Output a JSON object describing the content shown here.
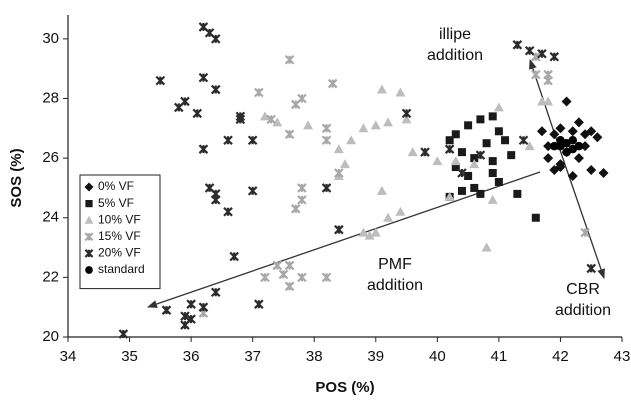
{
  "chart_data": {
    "type": "scatter",
    "x_label": "POS (%)",
    "y_label": "SOS (%)",
    "xlim": [
      34,
      43
    ],
    "ylim": [
      20,
      30.8
    ],
    "xticks": [
      34,
      35,
      36,
      37,
      38,
      39,
      40,
      41,
      42,
      43
    ],
    "yticks": [
      20,
      22,
      24,
      26,
      28,
      30
    ],
    "grid": false,
    "legend": "left",
    "annotations": [
      [
        "illipe",
        "addition"
      ],
      [
        "PMF",
        "addition"
      ],
      [
        "CBR",
        "addition"
      ]
    ],
    "series": [
      {
        "name": "0% VF",
        "color": "#111111",
        "marker": "diamond",
        "x": [
          41.7,
          41.9,
          42.0,
          42.2,
          42.4,
          42.5,
          42.1,
          41.8,
          42.3,
          41.9,
          42.2,
          42.5,
          42.7,
          42.0,
          42.4,
          42.6,
          42.3,
          42.1,
          41.8,
          42.0
        ],
        "values": [
          26.9,
          26.8,
          27.0,
          26.9,
          26.8,
          26.9,
          26.2,
          26.0,
          26.0,
          25.6,
          25.4,
          25.6,
          25.5,
          25.8,
          26.4,
          26.7,
          27.2,
          27.9,
          26.4,
          25.7
        ]
      },
      {
        "name": "5% VF",
        "color": "#1a1a1a",
        "marker": "square",
        "x": [
          40.2,
          40.3,
          40.5,
          40.7,
          40.9,
          40.4,
          40.6,
          40.3,
          40.5,
          40.8,
          40.9,
          41.0,
          41.2,
          41.1,
          40.4,
          40.7,
          40.2,
          41.3,
          40.6,
          41.6,
          40.9,
          41.0
        ],
        "values": [
          26.6,
          26.8,
          27.1,
          27.3,
          27.4,
          26.2,
          26.0,
          25.7,
          25.4,
          26.5,
          25.9,
          25.2,
          26.1,
          26.6,
          24.9,
          24.8,
          24.7,
          24.8,
          25.0,
          24.0,
          25.5,
          26.9
        ]
      },
      {
        "name": "10% VF",
        "color": "#bdbdbd",
        "marker": "triangle",
        "x": [
          37.2,
          37.4,
          37.9,
          38.4,
          38.5,
          38.6,
          38.8,
          39.0,
          39.1,
          39.2,
          39.4,
          39.5,
          39.6,
          39.8,
          40.0,
          40.3,
          40.6,
          39.1,
          39.2,
          38.8,
          39.0,
          39.4,
          40.2,
          41.0,
          40.9,
          41.5,
          40.8,
          41.7,
          41.8,
          38.9,
          38.4
        ],
        "values": [
          27.4,
          27.2,
          27.1,
          26.3,
          25.8,
          26.6,
          27.0,
          27.1,
          28.3,
          27.2,
          28.2,
          27.3,
          26.2,
          26.2,
          25.9,
          25.9,
          25.8,
          24.9,
          24.0,
          23.5,
          23.5,
          24.2,
          24.7,
          27.7,
          24.6,
          26.4,
          23.0,
          27.9,
          27.9,
          23.4,
          25.4
        ]
      },
      {
        "name": "15% VF",
        "color": "#a8a8a8",
        "marker": "x",
        "x": [
          37.1,
          37.6,
          37.8,
          37.7,
          38.3,
          38.2,
          38.2,
          37.3,
          37.6,
          38.4,
          37.8,
          37.8,
          37.7,
          37.4,
          37.2,
          37.5,
          37.6,
          37.8,
          38.2,
          37.6,
          36.2,
          41.8,
          41.8,
          41.6,
          42.4,
          41.6
        ],
        "values": [
          28.2,
          29.3,
          28.0,
          27.8,
          28.5,
          27.0,
          26.6,
          27.3,
          26.8,
          25.5,
          25.0,
          24.6,
          24.3,
          22.4,
          22.0,
          22.1,
          21.7,
          22.0,
          22.0,
          22.4,
          20.8,
          28.8,
          28.6,
          28.8,
          23.5,
          29.4
        ]
      },
      {
        "name": "20% VF",
        "color": "#2b2b2b",
        "marker": "x",
        "x": [
          35.5,
          35.8,
          35.9,
          36.1,
          36.2,
          36.2,
          36.3,
          36.4,
          36.4,
          36.2,
          36.3,
          36.4,
          36.4,
          36.6,
          36.6,
          36.8,
          36.8,
          37.0,
          37.0,
          36.7,
          36.4,
          36.2,
          35.9,
          35.9,
          36.0,
          36.0,
          35.6,
          34.9,
          37.1,
          38.2,
          38.4,
          39.5,
          39.8,
          40.2,
          40.7,
          41.4,
          41.3,
          41.5,
          41.7,
          41.9,
          42.5,
          40.4
        ],
        "values": [
          28.6,
          27.7,
          27.9,
          27.5,
          28.7,
          30.4,
          30.2,
          30.0,
          28.3,
          26.3,
          25.0,
          24.8,
          24.6,
          24.2,
          26.6,
          27.4,
          27.3,
          26.6,
          24.9,
          22.7,
          21.5,
          21.0,
          20.7,
          20.4,
          20.6,
          21.1,
          20.9,
          20.1,
          21.1,
          25.0,
          23.6,
          27.5,
          26.2,
          26.3,
          26.1,
          26.6,
          29.8,
          29.6,
          29.5,
          29.4,
          22.3,
          25.5
        ]
      },
      {
        "name": "standard",
        "color": "#000000",
        "marker": "circle",
        "x": [
          42.1,
          42.2,
          42.0,
          42.1,
          41.9,
          42.2,
          42.3,
          42.0
        ],
        "values": [
          26.5,
          26.3,
          26.4,
          26.2,
          26.4,
          26.6,
          26.4,
          26.6
        ]
      }
    ]
  }
}
